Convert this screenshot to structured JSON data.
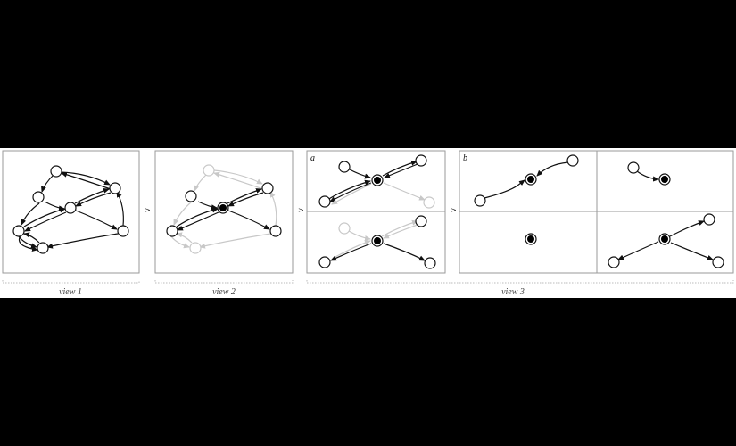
{
  "views": [
    {
      "label": "view 1"
    },
    {
      "label": "view 2"
    },
    {
      "label": "view 3"
    }
  ],
  "separators": [
    ">",
    ">",
    ">"
  ],
  "panel_letters": [
    "a",
    "b"
  ],
  "colors": {
    "background": "#000000",
    "strip": "#ffffff",
    "panel_border": "#9a9a9a",
    "active_edge": "#111111",
    "faded_edge": "#c8c8c8",
    "focus_node": "#000000"
  }
}
